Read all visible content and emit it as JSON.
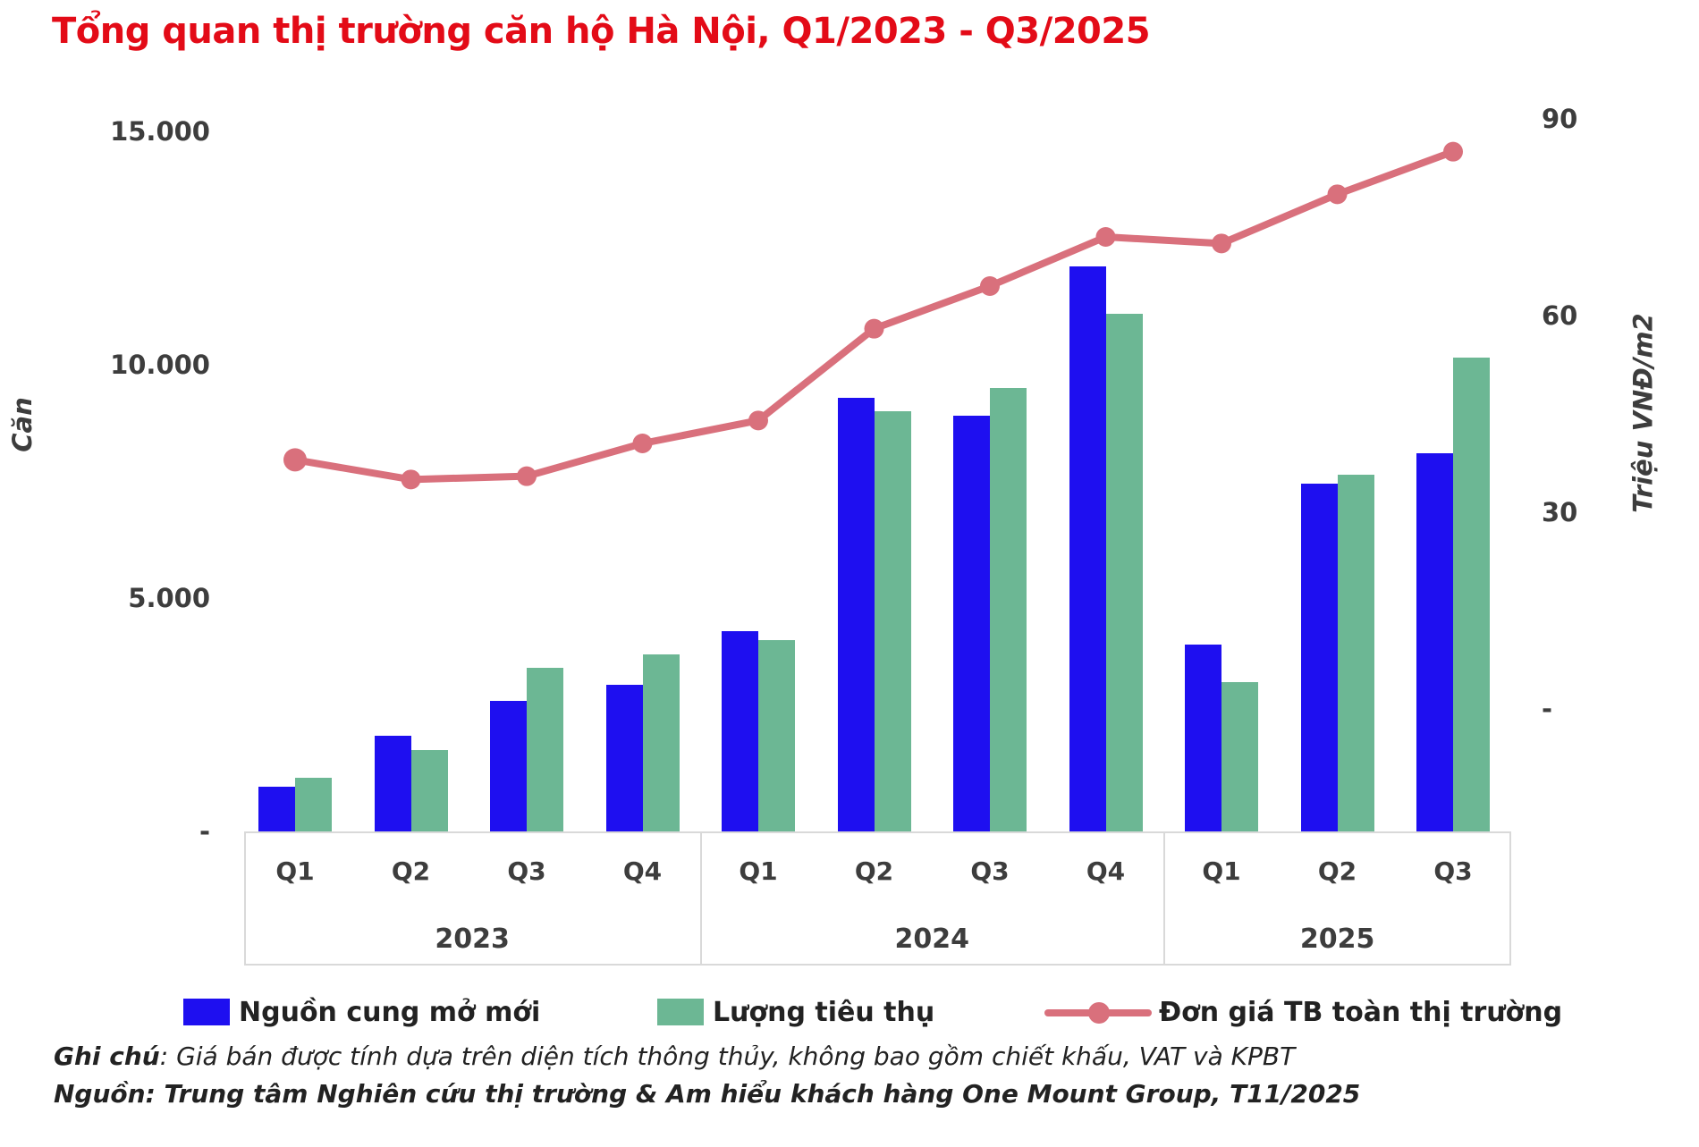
{
  "title": "Tổng quan thị trường căn hộ Hà Nội, Q1/2023 - Q3/2025",
  "colors": {
    "title_red": "#e30b17",
    "supply_blue": "#1e0ff0",
    "sales_green": "#6cb794",
    "price_pink": "#d9707c",
    "text_dark": "#3d3d3d",
    "band_border": "#d9d9d9"
  },
  "chart_data": {
    "type": "bar+line dual-axis",
    "categories": [
      "Q1",
      "Q2",
      "Q3",
      "Q4",
      "Q1",
      "Q2",
      "Q3",
      "Q4",
      "Q1",
      "Q2",
      "Q3"
    ],
    "year_groups": [
      {
        "label": "2023",
        "count": 4
      },
      {
        "label": "2024",
        "count": 4
      },
      {
        "label": "2025",
        "count": 3
      }
    ],
    "series": [
      {
        "name": "Nguồn cung mở mới",
        "type": "bar",
        "axis": "left",
        "color_key": "supply_blue",
        "values": [
          950,
          2050,
          2800,
          3150,
          4300,
          9300,
          8900,
          12100,
          4000,
          7450,
          8100
        ]
      },
      {
        "name": "Lượng tiêu thụ",
        "type": "bar",
        "axis": "left",
        "color_key": "sales_green",
        "values": [
          1150,
          1750,
          3500,
          3800,
          4100,
          9000,
          9500,
          11100,
          3200,
          7650,
          10150
        ]
      },
      {
        "name": "Đơn giá TB toàn thị trường",
        "type": "line",
        "axis": "right",
        "color_key": "price_pink",
        "values": [
          38,
          35,
          35.5,
          40.5,
          44,
          58,
          64.5,
          72,
          71,
          78.5,
          85
        ]
      }
    ],
    "left_axis": {
      "title": "Căn",
      "ticks": [
        {
          "label": "15.000",
          "value": 15000
        },
        {
          "label": "10.000",
          "value": 10000
        },
        {
          "label": "5.000",
          "value": 5000
        },
        {
          "label": "-",
          "value": 0
        }
      ]
    },
    "right_axis": {
      "title": "Triệu VNĐ/m2",
      "ticks": [
        {
          "label": "90",
          "value": 90
        },
        {
          "label": "60",
          "value": 60
        },
        {
          "label": "30",
          "value": 30
        },
        {
          "label": "-",
          "value": 0
        }
      ]
    },
    "legend_position": "bottom",
    "grid": false
  },
  "notes": {
    "note1_label": "Ghi chú",
    "note1_text": ": Giá bán được tính dựa trên diện tích thông thủy, không bao gồm chiết khấu, VAT và KPBT",
    "note2": "Nguồn: Trung tâm Nghiên cứu thị trường & Am hiểu khách hàng One Mount Group, T11/2025"
  }
}
